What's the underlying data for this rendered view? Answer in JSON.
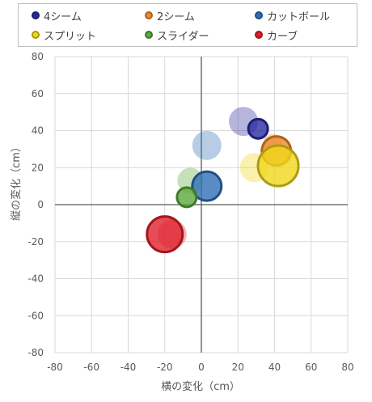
{
  "chart_data": {
    "type": "scatter",
    "title": "",
    "xlabel": "横の変化（cm）",
    "ylabel": "縦の変化（cm）",
    "xlim": [
      -80,
      80
    ],
    "ylim": [
      -80,
      80
    ],
    "xticks": [
      -80,
      -60,
      -40,
      -20,
      0,
      20,
      40,
      60,
      80
    ],
    "yticks": [
      -80,
      -60,
      -40,
      -20,
      0,
      20,
      40,
      60,
      80
    ],
    "grid": true,
    "legend_position": "top",
    "series": [
      {
        "name": "4シーム",
        "color": "#2a2aa0",
        "points": [
          {
            "x": 23,
            "y": 45,
            "size": 18,
            "faded": true
          },
          {
            "x": 31,
            "y": 41,
            "size": 12,
            "faded": false
          }
        ]
      },
      {
        "name": "2シーム",
        "color": "#ee8a2a",
        "points": [
          {
            "x": 39,
            "y": 33,
            "size": 12,
            "faded": true
          },
          {
            "x": 41,
            "y": 29,
            "size": 18,
            "faded": false
          }
        ]
      },
      {
        "name": "カットボール",
        "color": "#2f6fb5",
        "points": [
          {
            "x": 3,
            "y": 32,
            "size": 18,
            "faded": true
          },
          {
            "x": 3,
            "y": 10,
            "size": 18,
            "faded": false
          }
        ]
      },
      {
        "name": "スプリット",
        "color": "#f0d81a",
        "points": [
          {
            "x": 29,
            "y": 20,
            "size": 18,
            "faded": true
          },
          {
            "x": 42,
            "y": 21,
            "size": 25,
            "faded": false
          }
        ]
      },
      {
        "name": "スライダー",
        "color": "#5aaa3c",
        "points": [
          {
            "x": -6,
            "y": 13,
            "size": 16,
            "faded": true
          },
          {
            "x": -8,
            "y": 4,
            "size": 12,
            "faded": false
          }
        ]
      },
      {
        "name": "カーブ",
        "color": "#e0202c",
        "points": [
          {
            "x": -16,
            "y": -16,
            "size": 18,
            "faded": true
          },
          {
            "x": -20,
            "y": -16,
            "size": 22,
            "faded": false
          }
        ]
      }
    ]
  }
}
